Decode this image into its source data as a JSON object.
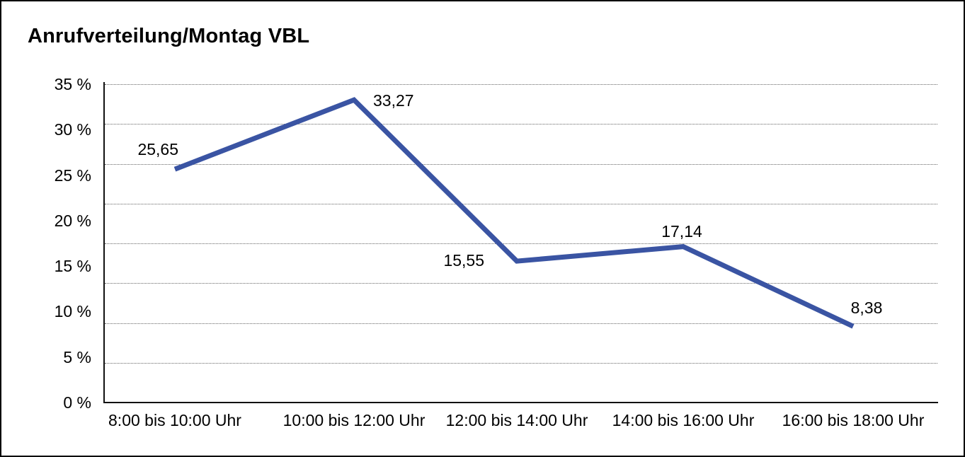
{
  "chart_data": {
    "type": "line",
    "title": "Anrufverteilung/Montag VBL",
    "categories": [
      "8:00 bis 10:00 Uhr",
      "10:00 bis 12:00 Uhr",
      "12:00 bis 14:00 Uhr",
      "14:00 bis 16:00 Uhr",
      "16:00 bis 18:00 Uhr"
    ],
    "values": [
      25.65,
      33.27,
      15.55,
      17.14,
      8.38
    ],
    "point_labels": [
      "25,65",
      "33,27",
      "15,55",
      "17,14",
      "8,38"
    ],
    "y_tick_labels": [
      "35 %",
      "30 %",
      "25 %",
      "20 %",
      "15 %",
      "10 %",
      "5 %",
      "0 %"
    ],
    "y_tick_values": [
      35,
      30,
      25,
      20,
      15,
      10,
      5,
      0
    ],
    "ylim": [
      0,
      35
    ],
    "xlabel": "",
    "ylabel": "",
    "legend": "none",
    "grid": "horizontal-dotted",
    "line_color": "#3A54A3",
    "text_color": "#000000",
    "gridline_color": "#666666",
    "axis_color": "#111111",
    "background": "#FFFFFF"
  }
}
